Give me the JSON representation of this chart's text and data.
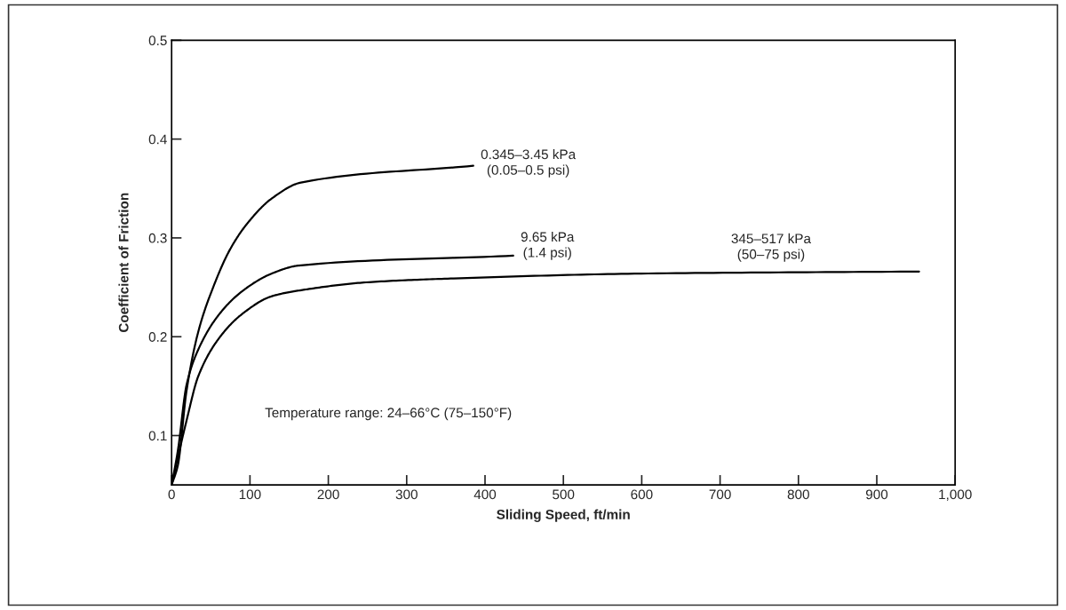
{
  "chart_data": {
    "type": "line",
    "xlabel": "Sliding Speed, ft/min",
    "ylabel": "Coefficient of Friction",
    "xlim": [
      0,
      1000
    ],
    "ylim": [
      0.05,
      0.5
    ],
    "xticks": [
      0,
      100,
      200,
      300,
      400,
      500,
      600,
      700,
      800,
      900,
      {
        "value": 1000,
        "label": "1,000"
      }
    ],
    "yticks": [
      0.1,
      0.2,
      0.3,
      0.4,
      0.5
    ],
    "grid": false,
    "legend": false,
    "marker": "none",
    "line_style": "solid",
    "series": [
      {
        "name": "0.345–3.45 kPa\n(0.05–0.5 psi)",
        "color": "#000000",
        "x": [
          0,
          8,
          19,
          34,
          53,
          75,
          98,
          128,
          165,
          385
        ],
        "values": [
          0.05,
          0.07,
          0.145,
          0.205,
          0.25,
          0.289,
          0.316,
          0.34,
          0.356,
          0.373
        ]
      },
      {
        "name": "9.65 kPa\n(1.4 psi)",
        "color": "#000000",
        "x": [
          0,
          8,
          19,
          34,
          61,
          90,
          128,
          162,
          436
        ],
        "values": [
          0.05,
          0.085,
          0.151,
          0.187,
          0.223,
          0.246,
          0.264,
          0.272,
          0.282
        ]
      },
      {
        "name": "345–517 kPa\n(50–75 psi)",
        "color": "#000000",
        "x": [
          0,
          19,
          34,
          61,
          90,
          128,
          173,
          248,
          360,
          608,
          954
        ],
        "values": [
          0.05,
          0.115,
          0.16,
          0.199,
          0.223,
          0.241,
          0.248,
          0.255,
          0.259,
          0.264,
          0.266
        ]
      }
    ],
    "annotations": [
      "Temperature range: 24–66°C (75–150°F)"
    ]
  }
}
